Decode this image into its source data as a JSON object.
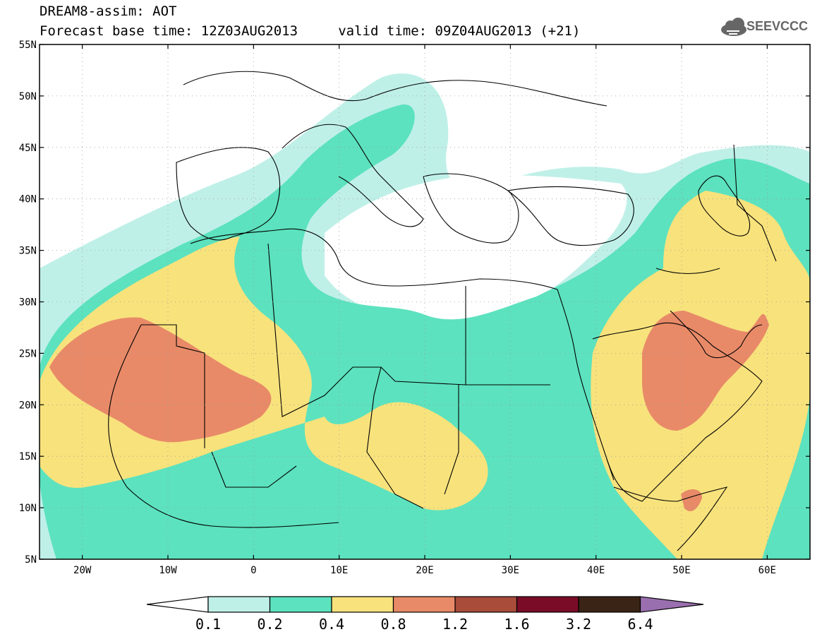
{
  "title": {
    "line1": "DREAM8-assim: AOT",
    "line2": "Forecast base time: 12Z03AUG2013     valid time: 09Z04AUG2013 (+21)"
  },
  "logo": {
    "text": "SEEVCCC",
    "icon": "cloud-icon"
  },
  "map": {
    "lon_range": [
      -25,
      65
    ],
    "lat_range": [
      5,
      55
    ],
    "lat_ticks": [
      "55N",
      "50N",
      "45N",
      "40N",
      "35N",
      "30N",
      "25N",
      "20N",
      "15N",
      "10N",
      "5N"
    ],
    "lon_ticks": [
      "20W",
      "10W",
      "0",
      "10E",
      "20E",
      "30E",
      "40E",
      "50E",
      "60E"
    ]
  },
  "colorbar": {
    "labels": [
      "0.1",
      "0.2",
      "0.4",
      "0.8",
      "1.2",
      "1.6",
      "3.2",
      "6.4"
    ],
    "colors": [
      "#bff0e8",
      "#5ce2be",
      "#f8e27c",
      "#e88a68",
      "#a94c3a",
      "#7a0c28",
      "#3a2415",
      "#9a6fb0"
    ],
    "under_color": "#ffffff"
  }
}
